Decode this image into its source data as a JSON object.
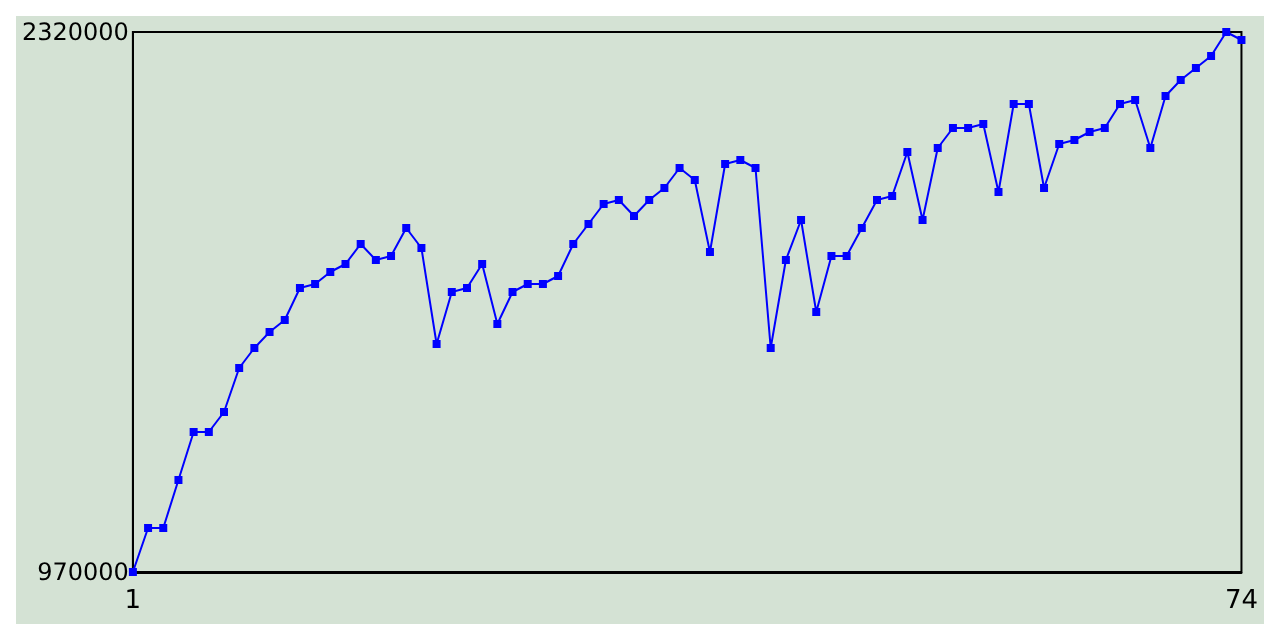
{
  "chart_data": {
    "type": "line",
    "x": [
      1,
      2,
      3,
      4,
      5,
      6,
      7,
      8,
      9,
      10,
      11,
      12,
      13,
      14,
      15,
      16,
      17,
      18,
      19,
      20,
      21,
      22,
      23,
      24,
      25,
      26,
      27,
      28,
      29,
      30,
      31,
      32,
      33,
      34,
      35,
      36,
      37,
      38,
      39,
      40,
      41,
      42,
      43,
      44,
      45,
      46,
      47,
      48,
      49,
      50,
      51,
      52,
      53,
      54,
      55,
      56,
      57,
      58,
      59,
      60,
      61,
      62,
      63,
      64,
      65,
      66,
      67,
      68,
      69,
      70,
      71,
      72,
      73,
      74
    ],
    "series": [
      {
        "color": "#0000ff",
        "values": [
          970000,
          1080000,
          1080000,
          1200000,
          1320000,
          1320000,
          1370000,
          1480000,
          1530000,
          1570000,
          1600000,
          1680000,
          1690000,
          1720000,
          1740000,
          1790000,
          1750000,
          1760000,
          1830000,
          1780000,
          1540000,
          1670000,
          1680000,
          1740000,
          1590000,
          1670000,
          1690000,
          1690000,
          1710000,
          1790000,
          1840000,
          1890000,
          1900000,
          1860000,
          1900000,
          1930000,
          1980000,
          1950000,
          1770000,
          1990000,
          2000000,
          1980000,
          1530000,
          1750000,
          1850000,
          1620000,
          1760000,
          1760000,
          1830000,
          1900000,
          1910000,
          2020000,
          1850000,
          2030000,
          2080000,
          2080000,
          2090000,
          1920000,
          2140000,
          2140000,
          1930000,
          2040000,
          2050000,
          2070000,
          2080000,
          2140000,
          2150000,
          2030000,
          2160000,
          2200000,
          2230000,
          2260000,
          2320000,
          2300000
        ]
      }
    ],
    "xlim": [
      1,
      74
    ],
    "xticks": [
      1,
      74
    ],
    "ylim": [
      970000,
      2320000
    ],
    "yticks": [
      970000,
      2320000
    ],
    "marker": "square",
    "line_style": "solid"
  }
}
